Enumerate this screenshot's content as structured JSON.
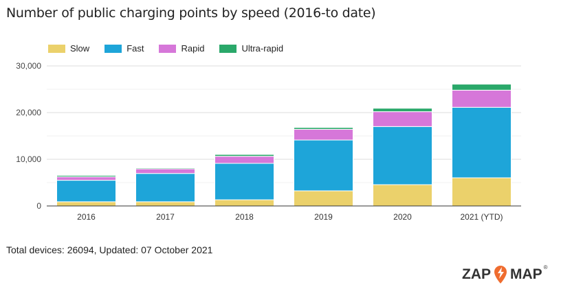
{
  "chart_data": {
    "type": "bar",
    "stacked": true,
    "title": "Number of public charging points by speed (2016-to date)",
    "xlabel": "",
    "ylabel": "",
    "categories": [
      "2016",
      "2017",
      "2018",
      "2019",
      "2020",
      "2021 (YTD)"
    ],
    "series": [
      {
        "name": "Slow",
        "color": "#ebd16b",
        "values": [
          900,
          900,
          1320,
          3240,
          4560,
          6030
        ]
      },
      {
        "name": "Fast",
        "color": "#1ea5d9",
        "values": [
          4600,
          6060,
          7800,
          10880,
          12450,
          15100
        ]
      },
      {
        "name": "Rapid",
        "color": "#d677d9",
        "values": [
          740,
          980,
          1520,
          2300,
          3190,
          3670
        ]
      },
      {
        "name": "Ultra-rapid",
        "color": "#2aa86a",
        "values": [
          300,
          200,
          390,
          390,
          730,
          1290
        ]
      }
    ],
    "ylim": [
      0,
      30000
    ],
    "yticks": [
      0,
      10000,
      20000,
      30000
    ],
    "ytick_labels": [
      "0",
      "10,000",
      "20,000",
      "30,000"
    ],
    "grid": true,
    "legend_placement": "top-left"
  },
  "footer": "Total devices: 26094, Updated: 07 October 2021",
  "logo": {
    "text_left": "ZAP",
    "text_right": "MAP",
    "accent": "#ef6c2f"
  }
}
